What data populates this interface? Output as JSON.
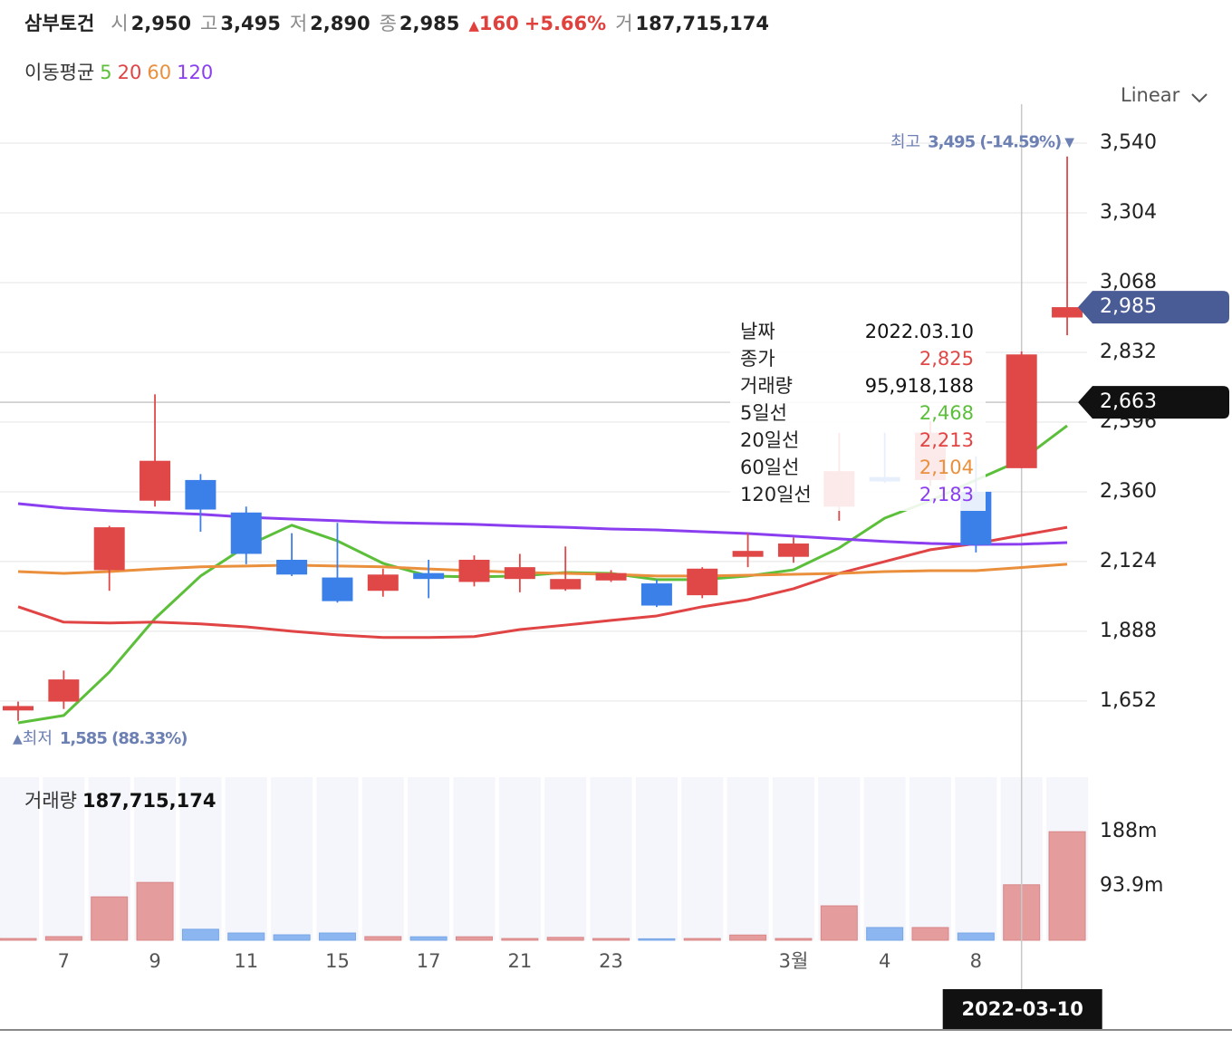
{
  "header": {
    "name": "삼부토건",
    "fields": [
      {
        "label": "시",
        "value": "2,950"
      },
      {
        "label": "고",
        "value": "3,495"
      },
      {
        "label": "저",
        "value": "2,890"
      },
      {
        "label": "종",
        "value": "2,985"
      }
    ],
    "change_arrow": "▲",
    "change": "160",
    "change_pct": "+5.66%",
    "volume": {
      "label": "거",
      "value": "187,715,174"
    }
  },
  "scale_mode": "Linear",
  "chart_data": {
    "type": "candlestick",
    "categories": [
      null,
      "7",
      null,
      "9",
      null,
      "11",
      null,
      "15",
      null,
      "17",
      null,
      "21",
      null,
      "23",
      null,
      null,
      null,
      "3월",
      null,
      "4",
      null,
      "8",
      null,
      null
    ],
    "open": [
      1620,
      1650,
      2095,
      2330,
      2400,
      2290,
      2130,
      2070,
      2025,
      2085,
      2055,
      2065,
      2030,
      2060,
      2050,
      2010,
      2140,
      2140,
      2310,
      2410,
      2400,
      2360,
      2440,
      2950
    ],
    "high": [
      1650,
      1755,
      2245,
      2690,
      2420,
      2310,
      2220,
      2255,
      2100,
      2130,
      2145,
      2150,
      2175,
      2095,
      2063,
      2105,
      2220,
      2205,
      2560,
      2560,
      2600,
      2480,
      2835,
      3495
    ],
    "low": [
      1585,
      1625,
      2025,
      2310,
      2225,
      2115,
      2075,
      1985,
      2005,
      2000,
      2040,
      2020,
      2025,
      2055,
      1970,
      2000,
      2105,
      2120,
      2262,
      2390,
      2380,
      2155,
      2440,
      2890
    ],
    "close": [
      1635,
      1725,
      2240,
      2465,
      2300,
      2150,
      2080,
      1990,
      2080,
      2065,
      2130,
      2105,
      2065,
      2085,
      1975,
      2100,
      2160,
      2185,
      2430,
      2395,
      2560,
      2180,
      2825,
      2985
    ],
    "up_color": "#e04848",
    "down_color": "#3b7fe8",
    "ylim": [
      1480,
      3626
    ],
    "yticks": [
      {
        "value": 3540,
        "label": "3,540"
      },
      {
        "value": 3304,
        "label": "3,304"
      },
      {
        "value": 3068,
        "label": "3,068"
      },
      {
        "value": 2832,
        "label": "2,832"
      },
      {
        "value": 2596,
        "label": "2,596"
      },
      {
        "value": 2360,
        "label": "2,360"
      },
      {
        "value": 2124,
        "label": "2,124"
      },
      {
        "value": 1888,
        "label": "1,888"
      },
      {
        "value": 1652,
        "label": "1,652"
      }
    ],
    "grid": true,
    "moving_averages": {
      "title": "이동평균",
      "series": [
        {
          "name": "5",
          "color": "#5cbf3a",
          "values": [
            1578,
            1603,
            1750,
            1931,
            2075,
            2176,
            2247,
            2194,
            2118,
            2075,
            2072,
            2075,
            2087,
            2084,
            2063,
            2063,
            2075,
            2096,
            2170,
            2271,
            2330,
            2400,
            2468,
            2584
          ]
        },
        {
          "name": "20",
          "color": "#e04444",
          "values": [
            1971,
            1919,
            1916,
            1919,
            1913,
            1903,
            1888,
            1876,
            1867,
            1867,
            1870,
            1894,
            1909,
            1925,
            1940,
            1971,
            1995,
            2032,
            2084,
            2124,
            2164,
            2185,
            2213,
            2240
          ]
        },
        {
          "name": "60",
          "color": "#ea8f3c",
          "values": [
            2090,
            2084,
            2090,
            2099,
            2106,
            2109,
            2112,
            2109,
            2106,
            2099,
            2093,
            2087,
            2084,
            2081,
            2075,
            2075,
            2078,
            2081,
            2084,
            2090,
            2093,
            2093,
            2104,
            2115
          ]
        },
        {
          "name": "120",
          "color": "#8a3ef0",
          "values": [
            2320,
            2305,
            2296,
            2290,
            2284,
            2274,
            2268,
            2262,
            2256,
            2253,
            2250,
            2244,
            2240,
            2234,
            2231,
            2225,
            2219,
            2210,
            2201,
            2192,
            2185,
            2182,
            2183,
            2188
          ]
        }
      ]
    },
    "volume": {
      "title": "거래량",
      "total": "187,715,174",
      "values": [
        3000000,
        6300000,
        75000000,
        100000000,
        19000000,
        12500000,
        9400000,
        12500000,
        6300000,
        6000000,
        6000000,
        3000000,
        5000000,
        3000000,
        2500000,
        3000000,
        9000000,
        3000000,
        59500000,
        22000000,
        22000000,
        12500000,
        95918188,
        187715174
      ],
      "ylim": [
        0,
        282000000
      ],
      "yticks": [
        {
          "value": 188000000,
          "label": "188m"
        },
        {
          "value": 93900000,
          "label": "93.9m"
        }
      ]
    },
    "high_annotation": {
      "label": "최고",
      "text": "3,495 (-14.59%)",
      "arrow": "▼"
    },
    "low_annotation": {
      "arrow": "▲",
      "label": "최저",
      "text": "1,585 (88.33%)"
    },
    "last_price": {
      "value": 2985,
      "label": "2,985"
    },
    "crosshair": {
      "value": 2663,
      "label": "2,663",
      "date": "2022-03-10"
    },
    "tooltip": {
      "rows": [
        {
          "label": "날짜",
          "value": "2022.03.10"
        },
        {
          "label": "종가",
          "value": "2,825"
        },
        {
          "label": "거래량",
          "value": "95,918,188"
        },
        {
          "label": "5일선",
          "value": "2,468"
        },
        {
          "label": "20일선",
          "value": "2,213"
        },
        {
          "label": "60일선",
          "value": "2,104"
        },
        {
          "label": "120일선",
          "value": "2,183"
        }
      ]
    }
  }
}
